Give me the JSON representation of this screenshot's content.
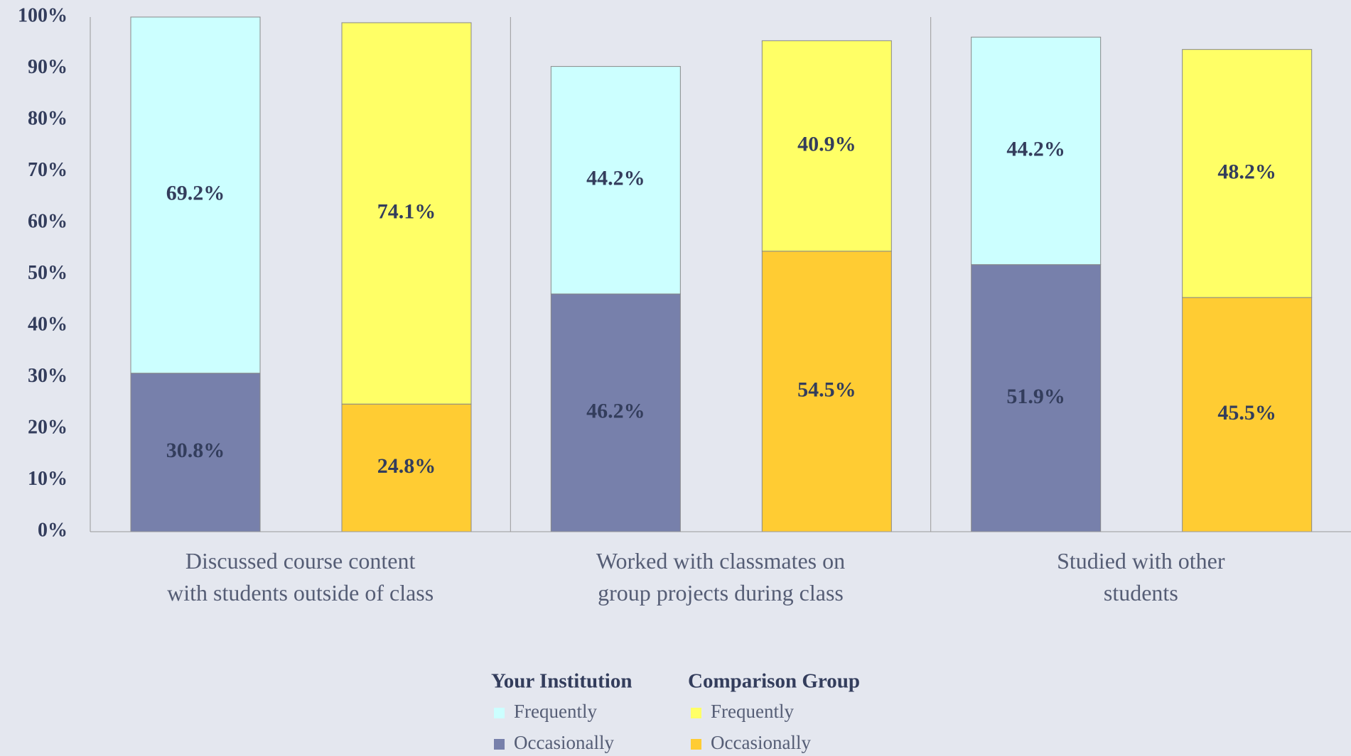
{
  "chart_data": {
    "type": "stacked_bar",
    "categories": [
      "Discussed course content\nwith students outside of class",
      "Worked with classmates on\ngroup projects during class",
      "Studied with other\nstudents"
    ],
    "stacks": [
      {
        "name": "Your Institution",
        "series": [
          {
            "name": "Occasionally",
            "color": "#7780ab",
            "values": [
              30.8,
              46.2,
              51.9
            ],
            "value_labels": [
              "30.8%",
              "46.2%",
              "51.9%"
            ]
          },
          {
            "name": "Frequently",
            "color": "#ccffff",
            "values": [
              69.2,
              44.2,
              44.2
            ],
            "value_labels": [
              "69.2%",
              "44.2%",
              "44.2%"
            ]
          }
        ]
      },
      {
        "name": "Comparison Group",
        "series": [
          {
            "name": "Occasionally",
            "color": "#ffcc33",
            "values": [
              24.8,
              54.5,
              45.5
            ],
            "value_labels": [
              "24.8%",
              "54.5%",
              "45.5%"
            ]
          },
          {
            "name": "Frequently",
            "color": "#ffff66",
            "values": [
              74.1,
              40.9,
              48.2
            ],
            "value_labels": [
              "74.1%",
              "40.9%",
              "48.2%"
            ]
          }
        ]
      }
    ],
    "ylim": [
      0,
      100
    ],
    "yticks": [
      {
        "value": 0,
        "label": "0%"
      },
      {
        "value": 10,
        "label": "10%"
      },
      {
        "value": 20,
        "label": "20%"
      },
      {
        "value": 30,
        "label": "30%"
      },
      {
        "value": 40,
        "label": "40%"
      },
      {
        "value": 50,
        "label": "50%"
      },
      {
        "value": 60,
        "label": "60%"
      },
      {
        "value": 70,
        "label": "70%"
      },
      {
        "value": 80,
        "label": "80%"
      },
      {
        "value": 90,
        "label": "90%"
      },
      {
        "value": 100,
        "label": "100%"
      }
    ]
  }
}
